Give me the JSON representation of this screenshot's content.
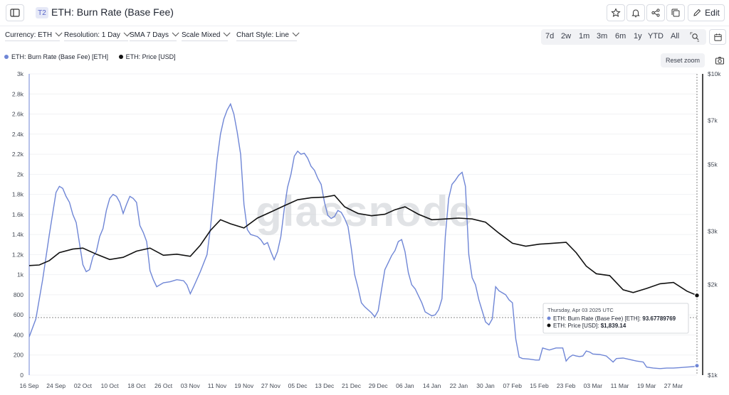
{
  "header": {
    "badge": "T2",
    "title": "ETH: Burn Rate (Base Fee)",
    "edit_label": "Edit"
  },
  "controls": {
    "currency": "Currency: ETH",
    "resolution": "Resolution: 1 Day",
    "sma": "SMA 7 Days",
    "scale": "Scale Mixed",
    "style": "Chart Style: Line"
  },
  "ranges": [
    "7d",
    "2w",
    "1m",
    "3m",
    "6m",
    "1y",
    "YTD",
    "All"
  ],
  "reset_zoom": "Reset zoom",
  "watermark": "glassnode",
  "tooltip": {
    "date": "Thursday, Apr 03 2025 UTC",
    "burn_label": "ETH: Burn Rate (Base Fee) [ETH]:",
    "burn_value": "93.67789769",
    "price_label": "ETH: Price [USD]:",
    "price_value": "$1,839.14"
  },
  "colors": {
    "burn": "#6f86d6",
    "price": "#111111",
    "accent": "#5a67c9"
  },
  "chart_data": {
    "type": "line",
    "x_tick_labels": [
      "16 Sep",
      "24 Sep",
      "02 Oct",
      "10 Oct",
      "18 Oct",
      "26 Oct",
      "03 Nov",
      "11 Nov",
      "19 Nov",
      "27 Nov",
      "05 Dec",
      "13 Dec",
      "21 Dec",
      "29 Dec",
      "06 Jan",
      "14 Jan",
      "22 Jan",
      "30 Jan",
      "07 Feb",
      "15 Feb",
      "23 Feb",
      "03 Mar",
      "11 Mar",
      "19 Mar",
      "27 Mar"
    ],
    "y_left_ticks": [
      "0",
      "200",
      "400",
      "600",
      "800",
      "1k",
      "1.2k",
      "1.4k",
      "1.6k",
      "1.8k",
      "2k",
      "2.2k",
      "2.4k",
      "2.6k",
      "2.8k",
      "3k"
    ],
    "y_left_lim": [
      0,
      3000
    ],
    "y_right_ticks": [
      "$1k",
      "$2k",
      "$3k",
      "$5k",
      "$7k",
      "$10k"
    ],
    "y_right_lim": [
      1000,
      10000
    ],
    "y_right_scale": "log",
    "x_start": "2024-09-16",
    "x_end": "2025-04-03",
    "series": [
      {
        "name": "ETH: Burn Rate (Base Fee) [ETH]",
        "axis": "left",
        "color": "#6f86d6",
        "points": [
          [
            "2024-09-16",
            380
          ],
          [
            "2024-09-18",
            560
          ],
          [
            "2024-09-20",
            950
          ],
          [
            "2024-09-22",
            1400
          ],
          [
            "2024-09-24",
            1820
          ],
          [
            "2024-09-25",
            1880
          ],
          [
            "2024-09-26",
            1860
          ],
          [
            "2024-09-27",
            1780
          ],
          [
            "2024-09-28",
            1720
          ],
          [
            "2024-09-29",
            1600
          ],
          [
            "2024-09-30",
            1520
          ],
          [
            "2024-10-01",
            1310
          ],
          [
            "2024-10-02",
            1100
          ],
          [
            "2024-10-03",
            1030
          ],
          [
            "2024-10-04",
            1050
          ],
          [
            "2024-10-05",
            1180
          ],
          [
            "2024-10-06",
            1230
          ],
          [
            "2024-10-07",
            1380
          ],
          [
            "2024-10-08",
            1460
          ],
          [
            "2024-10-09",
            1640
          ],
          [
            "2024-10-10",
            1760
          ],
          [
            "2024-10-11",
            1800
          ],
          [
            "2024-10-12",
            1780
          ],
          [
            "2024-10-13",
            1720
          ],
          [
            "2024-10-14",
            1610
          ],
          [
            "2024-10-15",
            1700
          ],
          [
            "2024-10-16",
            1780
          ],
          [
            "2024-10-17",
            1760
          ],
          [
            "2024-10-18",
            1720
          ],
          [
            "2024-10-19",
            1490
          ],
          [
            "2024-10-20",
            1420
          ],
          [
            "2024-10-21",
            1330
          ],
          [
            "2024-10-22",
            1040
          ],
          [
            "2024-10-23",
            950
          ],
          [
            "2024-10-24",
            880
          ],
          [
            "2024-10-26",
            920
          ],
          [
            "2024-10-28",
            930
          ],
          [
            "2024-10-30",
            950
          ],
          [
            "2024-11-01",
            940
          ],
          [
            "2024-11-02",
            900
          ],
          [
            "2024-11-03",
            810
          ],
          [
            "2024-11-04",
            880
          ],
          [
            "2024-11-06",
            1030
          ],
          [
            "2024-11-08",
            1200
          ],
          [
            "2024-11-09",
            1460
          ],
          [
            "2024-11-10",
            1800
          ],
          [
            "2024-11-11",
            2150
          ],
          [
            "2024-11-12",
            2400
          ],
          [
            "2024-11-13",
            2550
          ],
          [
            "2024-11-14",
            2640
          ],
          [
            "2024-11-15",
            2700
          ],
          [
            "2024-11-16",
            2600
          ],
          [
            "2024-11-17",
            2420
          ],
          [
            "2024-11-18",
            2200
          ],
          [
            "2024-11-19",
            1700
          ],
          [
            "2024-11-20",
            1450
          ],
          [
            "2024-11-21",
            1400
          ],
          [
            "2024-11-22",
            1390
          ],
          [
            "2024-11-23",
            1380
          ],
          [
            "2024-11-24",
            1350
          ],
          [
            "2024-11-25",
            1300
          ],
          [
            "2024-11-26",
            1320
          ],
          [
            "2024-11-27",
            1230
          ],
          [
            "2024-11-28",
            1150
          ],
          [
            "2024-11-29",
            1230
          ],
          [
            "2024-11-30",
            1380
          ],
          [
            "2024-12-01",
            1650
          ],
          [
            "2024-12-02",
            1870
          ],
          [
            "2024-12-03",
            2000
          ],
          [
            "2024-12-04",
            2180
          ],
          [
            "2024-12-05",
            2230
          ],
          [
            "2024-12-06",
            2200
          ],
          [
            "2024-12-07",
            2210
          ],
          [
            "2024-12-08",
            2160
          ],
          [
            "2024-12-09",
            2080
          ],
          [
            "2024-12-10",
            2040
          ],
          [
            "2024-12-11",
            1960
          ],
          [
            "2024-12-12",
            1900
          ],
          [
            "2024-12-13",
            1720
          ],
          [
            "2024-12-14",
            1590
          ],
          [
            "2024-12-15",
            1560
          ],
          [
            "2024-12-16",
            1580
          ],
          [
            "2024-12-17",
            1640
          ],
          [
            "2024-12-18",
            1620
          ],
          [
            "2024-12-19",
            1560
          ],
          [
            "2024-12-20",
            1480
          ],
          [
            "2024-12-21",
            1260
          ],
          [
            "2024-12-22",
            1000
          ],
          [
            "2024-12-23",
            870
          ],
          [
            "2024-12-24",
            720
          ],
          [
            "2024-12-25",
            680
          ],
          [
            "2024-12-27",
            620
          ],
          [
            "2024-12-28",
            580
          ],
          [
            "2024-12-29",
            640
          ],
          [
            "2024-12-30",
            850
          ],
          [
            "2024-12-31",
            1050
          ],
          [
            "2025-01-01",
            1120
          ],
          [
            "2025-01-02",
            1190
          ],
          [
            "2025-01-03",
            1240
          ],
          [
            "2025-01-04",
            1330
          ],
          [
            "2025-01-05",
            1350
          ],
          [
            "2025-01-06",
            1230
          ],
          [
            "2025-01-07",
            1020
          ],
          [
            "2025-01-08",
            900
          ],
          [
            "2025-01-09",
            860
          ],
          [
            "2025-01-10",
            790
          ],
          [
            "2025-01-11",
            720
          ],
          [
            "2025-01-12",
            630
          ],
          [
            "2025-01-13",
            610
          ],
          [
            "2025-01-14",
            590
          ],
          [
            "2025-01-15",
            600
          ],
          [
            "2025-01-16",
            650
          ],
          [
            "2025-01-17",
            760
          ],
          [
            "2025-01-18",
            1380
          ],
          [
            "2025-01-19",
            1760
          ],
          [
            "2025-01-20",
            1900
          ],
          [
            "2025-01-21",
            1940
          ],
          [
            "2025-01-22",
            1990
          ],
          [
            "2025-01-23",
            2020
          ],
          [
            "2025-01-24",
            1880
          ],
          [
            "2025-01-25",
            1200
          ],
          [
            "2025-01-26",
            970
          ],
          [
            "2025-01-27",
            900
          ],
          [
            "2025-01-28",
            750
          ],
          [
            "2025-01-29",
            640
          ],
          [
            "2025-01-30",
            530
          ],
          [
            "2025-01-31",
            500
          ],
          [
            "2025-02-01",
            560
          ],
          [
            "2025-02-02",
            880
          ],
          [
            "2025-02-03",
            840
          ],
          [
            "2025-02-04",
            820
          ],
          [
            "2025-02-05",
            800
          ],
          [
            "2025-02-06",
            750
          ],
          [
            "2025-02-07",
            720
          ],
          [
            "2025-02-08",
            360
          ],
          [
            "2025-02-09",
            180
          ],
          [
            "2025-02-10",
            165
          ],
          [
            "2025-02-12",
            160
          ],
          [
            "2025-02-14",
            150
          ],
          [
            "2025-02-15",
            150
          ],
          [
            "2025-02-16",
            270
          ],
          [
            "2025-02-18",
            250
          ],
          [
            "2025-02-20",
            270
          ],
          [
            "2025-02-21",
            270
          ],
          [
            "2025-02-22",
            270
          ],
          [
            "2025-02-23",
            140
          ],
          [
            "2025-02-24",
            180
          ],
          [
            "2025-02-25",
            200
          ],
          [
            "2025-02-26",
            190
          ],
          [
            "2025-02-27",
            185
          ],
          [
            "2025-02-28",
            190
          ],
          [
            "2025-03-01",
            240
          ],
          [
            "2025-03-02",
            230
          ],
          [
            "2025-03-03",
            210
          ],
          [
            "2025-03-05",
            205
          ],
          [
            "2025-03-07",
            190
          ],
          [
            "2025-03-09",
            130
          ],
          [
            "2025-03-10",
            165
          ],
          [
            "2025-03-12",
            170
          ],
          [
            "2025-03-14",
            155
          ],
          [
            "2025-03-16",
            140
          ],
          [
            "2025-03-18",
            130
          ],
          [
            "2025-03-19",
            80
          ],
          [
            "2025-03-21",
            70
          ],
          [
            "2025-03-23",
            65
          ],
          [
            "2025-03-25",
            70
          ],
          [
            "2025-03-27",
            70
          ],
          [
            "2025-03-29",
            75
          ],
          [
            "2025-03-31",
            80
          ],
          [
            "2025-04-02",
            85
          ],
          [
            "2025-04-03",
            93.68
          ]
        ]
      },
      {
        "name": "ETH: Price [USD]",
        "axis": "right",
        "color": "#111111",
        "points": [
          [
            "2024-09-16",
            2310
          ],
          [
            "2024-09-19",
            2320
          ],
          [
            "2024-09-22",
            2400
          ],
          [
            "2024-09-25",
            2550
          ],
          [
            "2024-09-29",
            2620
          ],
          [
            "2024-10-02",
            2640
          ],
          [
            "2024-10-06",
            2520
          ],
          [
            "2024-10-10",
            2420
          ],
          [
            "2024-10-14",
            2460
          ],
          [
            "2024-10-18",
            2580
          ],
          [
            "2024-10-22",
            2640
          ],
          [
            "2024-10-26",
            2500
          ],
          [
            "2024-10-30",
            2520
          ],
          [
            "2024-11-03",
            2480
          ],
          [
            "2024-11-06",
            2700
          ],
          [
            "2024-11-09",
            3020
          ],
          [
            "2024-11-12",
            3280
          ],
          [
            "2024-11-15",
            3180
          ],
          [
            "2024-11-19",
            3080
          ],
          [
            "2024-11-23",
            3320
          ],
          [
            "2024-11-27",
            3480
          ],
          [
            "2024-12-01",
            3650
          ],
          [
            "2024-12-05",
            3820
          ],
          [
            "2024-12-09",
            3880
          ],
          [
            "2024-12-13",
            3900
          ],
          [
            "2024-12-16",
            3950
          ],
          [
            "2024-12-19",
            3620
          ],
          [
            "2024-12-23",
            3440
          ],
          [
            "2024-12-27",
            3380
          ],
          [
            "2024-12-31",
            3420
          ],
          [
            "2025-01-03",
            3540
          ],
          [
            "2025-01-06",
            3620
          ],
          [
            "2025-01-10",
            3420
          ],
          [
            "2025-01-14",
            3280
          ],
          [
            "2025-01-18",
            3300
          ],
          [
            "2025-01-22",
            3320
          ],
          [
            "2025-01-26",
            3300
          ],
          [
            "2025-01-30",
            3220
          ],
          [
            "2025-02-03",
            2960
          ],
          [
            "2025-02-07",
            2740
          ],
          [
            "2025-02-11",
            2680
          ],
          [
            "2025-02-15",
            2720
          ],
          [
            "2025-02-19",
            2740
          ],
          [
            "2025-02-23",
            2760
          ],
          [
            "2025-02-26",
            2550
          ],
          [
            "2025-03-01",
            2300
          ],
          [
            "2025-03-04",
            2170
          ],
          [
            "2025-03-08",
            2140
          ],
          [
            "2025-03-12",
            1920
          ],
          [
            "2025-03-15",
            1880
          ],
          [
            "2025-03-19",
            1940
          ],
          [
            "2025-03-23",
            2010
          ],
          [
            "2025-03-27",
            2030
          ],
          [
            "2025-03-31",
            1900
          ],
          [
            "2025-04-03",
            1839.14
          ]
        ]
      }
    ]
  }
}
